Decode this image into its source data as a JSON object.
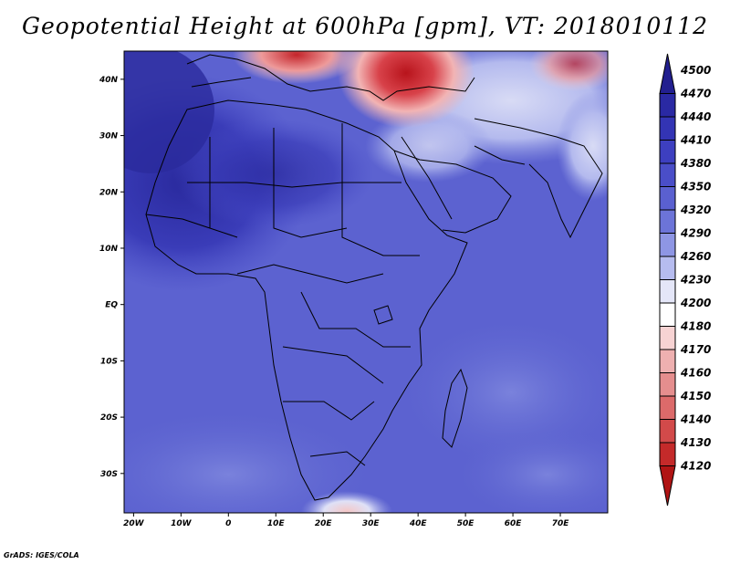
{
  "title": "Geopotential Height at 600hPa [gpm], VT: 2018010112",
  "footer": "GrADS: IGES/COLA",
  "map": {
    "lon_range": [
      -22,
      80
    ],
    "lat_range": [
      -37,
      45
    ],
    "lon_ticks": [
      "20W",
      "10W",
      "0",
      "10E",
      "20E",
      "30E",
      "40E",
      "50E",
      "60E",
      "70E"
    ],
    "lat_ticks": [
      "40N",
      "30N",
      "20N",
      "10N",
      "EQ",
      "10S",
      "20S",
      "30S"
    ]
  },
  "colorbar": {
    "levels": [
      "4500",
      "4470",
      "4440",
      "4410",
      "4380",
      "4350",
      "4320",
      "4290",
      "4260",
      "4230",
      "4200",
      "4180",
      "4170",
      "4160",
      "4150",
      "4140",
      "4130",
      "4120"
    ],
    "colors": [
      "#221f8f",
      "#2a29a3",
      "#3334b4",
      "#3d3fc0",
      "#4a4ec8",
      "#5a60d0",
      "#6c74d8",
      "#8e96e4",
      "#b6bcef",
      "#e4e6f8",
      "#ffffff",
      "#f7d3d3",
      "#eeb0b0",
      "#e58e8e",
      "#dc6a6a",
      "#d24a4a",
      "#c42a2a",
      "#b01414"
    ]
  }
}
